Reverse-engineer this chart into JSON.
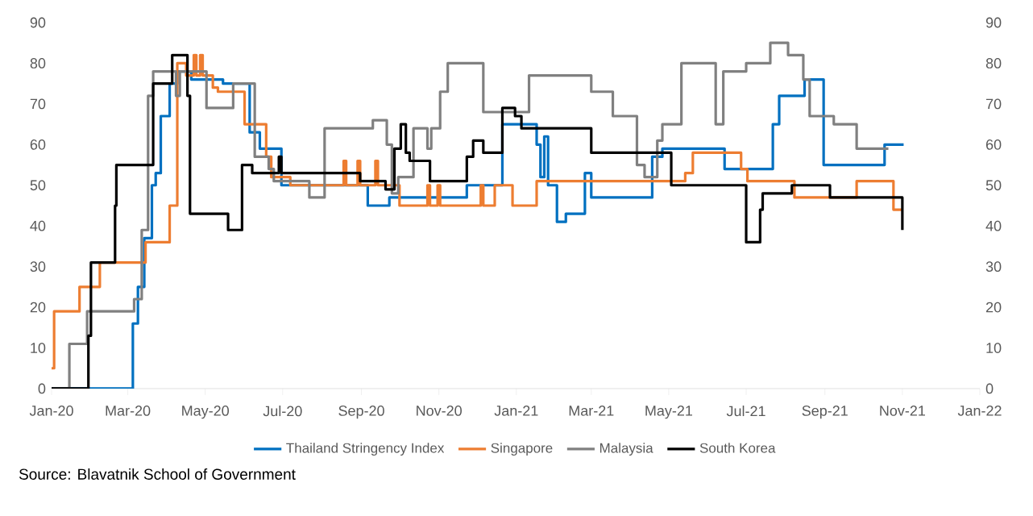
{
  "chart_data": {
    "type": "step",
    "xlim": [
      "2020-01",
      "2022-01"
    ],
    "ylim": [
      0,
      90
    ],
    "y2lim": [
      0,
      90
    ],
    "xticks": [
      {
        "value": "2020-01",
        "label": "Jan-20"
      },
      {
        "value": "2020-03",
        "label": "Mar-20"
      },
      {
        "value": "2020-05",
        "label": "May-20"
      },
      {
        "value": "2020-07",
        "label": "Jul-20"
      },
      {
        "value": "2020-09",
        "label": "Sep-20"
      },
      {
        "value": "2020-11",
        "label": "Nov-20"
      },
      {
        "value": "2021-01",
        "label": "Jan-21"
      },
      {
        "value": "2021-03",
        "label": "Mar-21"
      },
      {
        "value": "2021-05",
        "label": "May-21"
      },
      {
        "value": "2021-07",
        "label": "Jul-21"
      },
      {
        "value": "2021-09",
        "label": "Sep-21"
      },
      {
        "value": "2021-11",
        "label": "Nov-21"
      },
      {
        "value": "2022-01",
        "label": "Jan-22"
      }
    ],
    "yticks": [
      0,
      10,
      20,
      30,
      40,
      50,
      60,
      70,
      80,
      90
    ],
    "y2ticks": [
      0,
      10,
      20,
      30,
      40,
      50,
      60,
      70,
      80,
      90
    ],
    "legend": "bottom",
    "annotations": [
      "Source: Blavatnik School of Government"
    ],
    "series": [
      {
        "name": "Thailand Stringency Index",
        "color": "#0070c0",
        "x": [
          "2020-01-01",
          "2020-03-05",
          "2020-03-09",
          "2020-03-14",
          "2020-03-20",
          "2020-03-23",
          "2020-03-27",
          "2020-04-03",
          "2020-04-09",
          "2020-04-20",
          "2020-05-15",
          "2020-06-05",
          "2020-06-13",
          "2020-06-30",
          "2020-09-06",
          "2020-09-23",
          "2020-11-23",
          "2020-12-21",
          "2021-01-17",
          "2021-01-20",
          "2021-01-23",
          "2021-01-26",
          "2021-02-02",
          "2021-02-09",
          "2021-02-24",
          "2021-03-01",
          "2021-04-18",
          "2021-04-26",
          "2021-06-14",
          "2021-07-22",
          "2021-07-27",
          "2021-08-16",
          "2021-08-31",
          "2021-10-18",
          "2021-11-02"
        ],
        "values": [
          0,
          16,
          25,
          37,
          50,
          53,
          67,
          75,
          78,
          76,
          75,
          63,
          59,
          50,
          45,
          47,
          50,
          65,
          60,
          52,
          62,
          50,
          41,
          43,
          53,
          47,
          57,
          59,
          54,
          65,
          72,
          76,
          55,
          60,
          60
        ]
      },
      {
        "name": "Singapore",
        "color": "#ed7d31",
        "x": [
          "2020-01-01",
          "2020-01-03",
          "2020-01-23",
          "2020-02-08",
          "2020-03-15",
          "2020-04-03",
          "2020-04-09",
          "2020-04-16",
          "2020-04-22",
          "2020-04-24",
          "2020-04-27",
          "2020-04-29",
          "2020-05-07",
          "2020-05-11",
          "2020-06-01",
          "2020-06-18",
          "2020-06-22",
          "2020-07-07",
          "2020-08-18",
          "2020-08-20",
          "2020-08-29",
          "2020-08-31",
          "2020-09-12",
          "2020-09-14",
          "2020-10-01",
          "2020-10-23",
          "2020-10-25",
          "2020-10-31",
          "2020-11-02",
          "2020-12-04",
          "2020-12-06",
          "2020-12-15",
          "2020-12-29",
          "2021-01-17",
          "2021-05-14",
          "2021-05-20",
          "2021-06-27",
          "2021-07-02",
          "2021-08-08",
          "2021-09-26",
          "2021-10-25",
          "2021-11-01"
        ],
        "values": [
          5,
          19,
          25,
          31,
          36,
          45,
          80,
          77,
          82,
          77,
          82,
          77,
          74,
          73,
          65,
          57,
          52,
          50,
          56,
          50,
          56,
          50,
          56,
          50,
          45,
          50,
          45,
          50,
          45,
          50,
          45,
          50,
          45,
          51,
          53,
          58,
          54,
          51,
          47,
          51,
          44,
          44
        ]
      },
      {
        "name": "Malaysia",
        "color": "#808080",
        "x": [
          "2020-01-01",
          "2020-01-15",
          "2020-01-29",
          "2020-03-06",
          "2020-03-12",
          "2020-03-17",
          "2020-03-21",
          "2020-04-08",
          "2020-04-11",
          "2020-05-02",
          "2020-05-23",
          "2020-06-09",
          "2020-06-20",
          "2020-06-24",
          "2020-07-22",
          "2020-08-03",
          "2020-09-10",
          "2020-09-21",
          "2020-09-25",
          "2020-09-30",
          "2020-10-12",
          "2020-10-23",
          "2020-10-26",
          "2020-11-02",
          "2020-11-08",
          "2020-12-06",
          "2021-01-11",
          "2021-03-01",
          "2021-03-18",
          "2021-04-06",
          "2021-04-12",
          "2021-04-22",
          "2021-04-26",
          "2021-05-11",
          "2021-06-07",
          "2021-06-13",
          "2021-07-01",
          "2021-07-20",
          "2021-08-03",
          "2021-08-15",
          "2021-08-20",
          "2021-09-08",
          "2021-09-26",
          "2021-10-21"
        ],
        "values": [
          0,
          11,
          19,
          22,
          39,
          72,
          78,
          72,
          78,
          69,
          75,
          57,
          54,
          51,
          47,
          64,
          66,
          60,
          48,
          52,
          64,
          59,
          64,
          73,
          80,
          68,
          77,
          73,
          67,
          55,
          52,
          61,
          65,
          80,
          65,
          78,
          80,
          85,
          82,
          76,
          67,
          65,
          59,
          59
        ]
      },
      {
        "name": "South Korea",
        "color": "#000000",
        "x": [
          "2020-01-01",
          "2020-01-30",
          "2020-02-01",
          "2020-02-20",
          "2020-02-21",
          "2020-03-21",
          "2020-04-05",
          "2020-04-17",
          "2020-04-19",
          "2020-05-19",
          "2020-05-30",
          "2020-06-07",
          "2020-06-28",
          "2020-06-30",
          "2020-08-31",
          "2020-09-20",
          "2020-09-27",
          "2020-10-02",
          "2020-10-06",
          "2020-10-09",
          "2020-10-25",
          "2020-11-23",
          "2020-11-28",
          "2020-12-06",
          "2020-12-21",
          "2020-12-31",
          "2021-01-05",
          "2021-03-01",
          "2021-05-03",
          "2021-07-01",
          "2021-07-12",
          "2021-07-14",
          "2021-08-06",
          "2021-09-05",
          "2021-11-01"
        ],
        "values": [
          0,
          13,
          31,
          45,
          55,
          75,
          82,
          72,
          43,
          39,
          55,
          53,
          57,
          53,
          51,
          49,
          59,
          65,
          58,
          56,
          51,
          57,
          61,
          58,
          69,
          67,
          64,
          58,
          50,
          36,
          44,
          48,
          50,
          47,
          39
        ]
      }
    ]
  }
}
